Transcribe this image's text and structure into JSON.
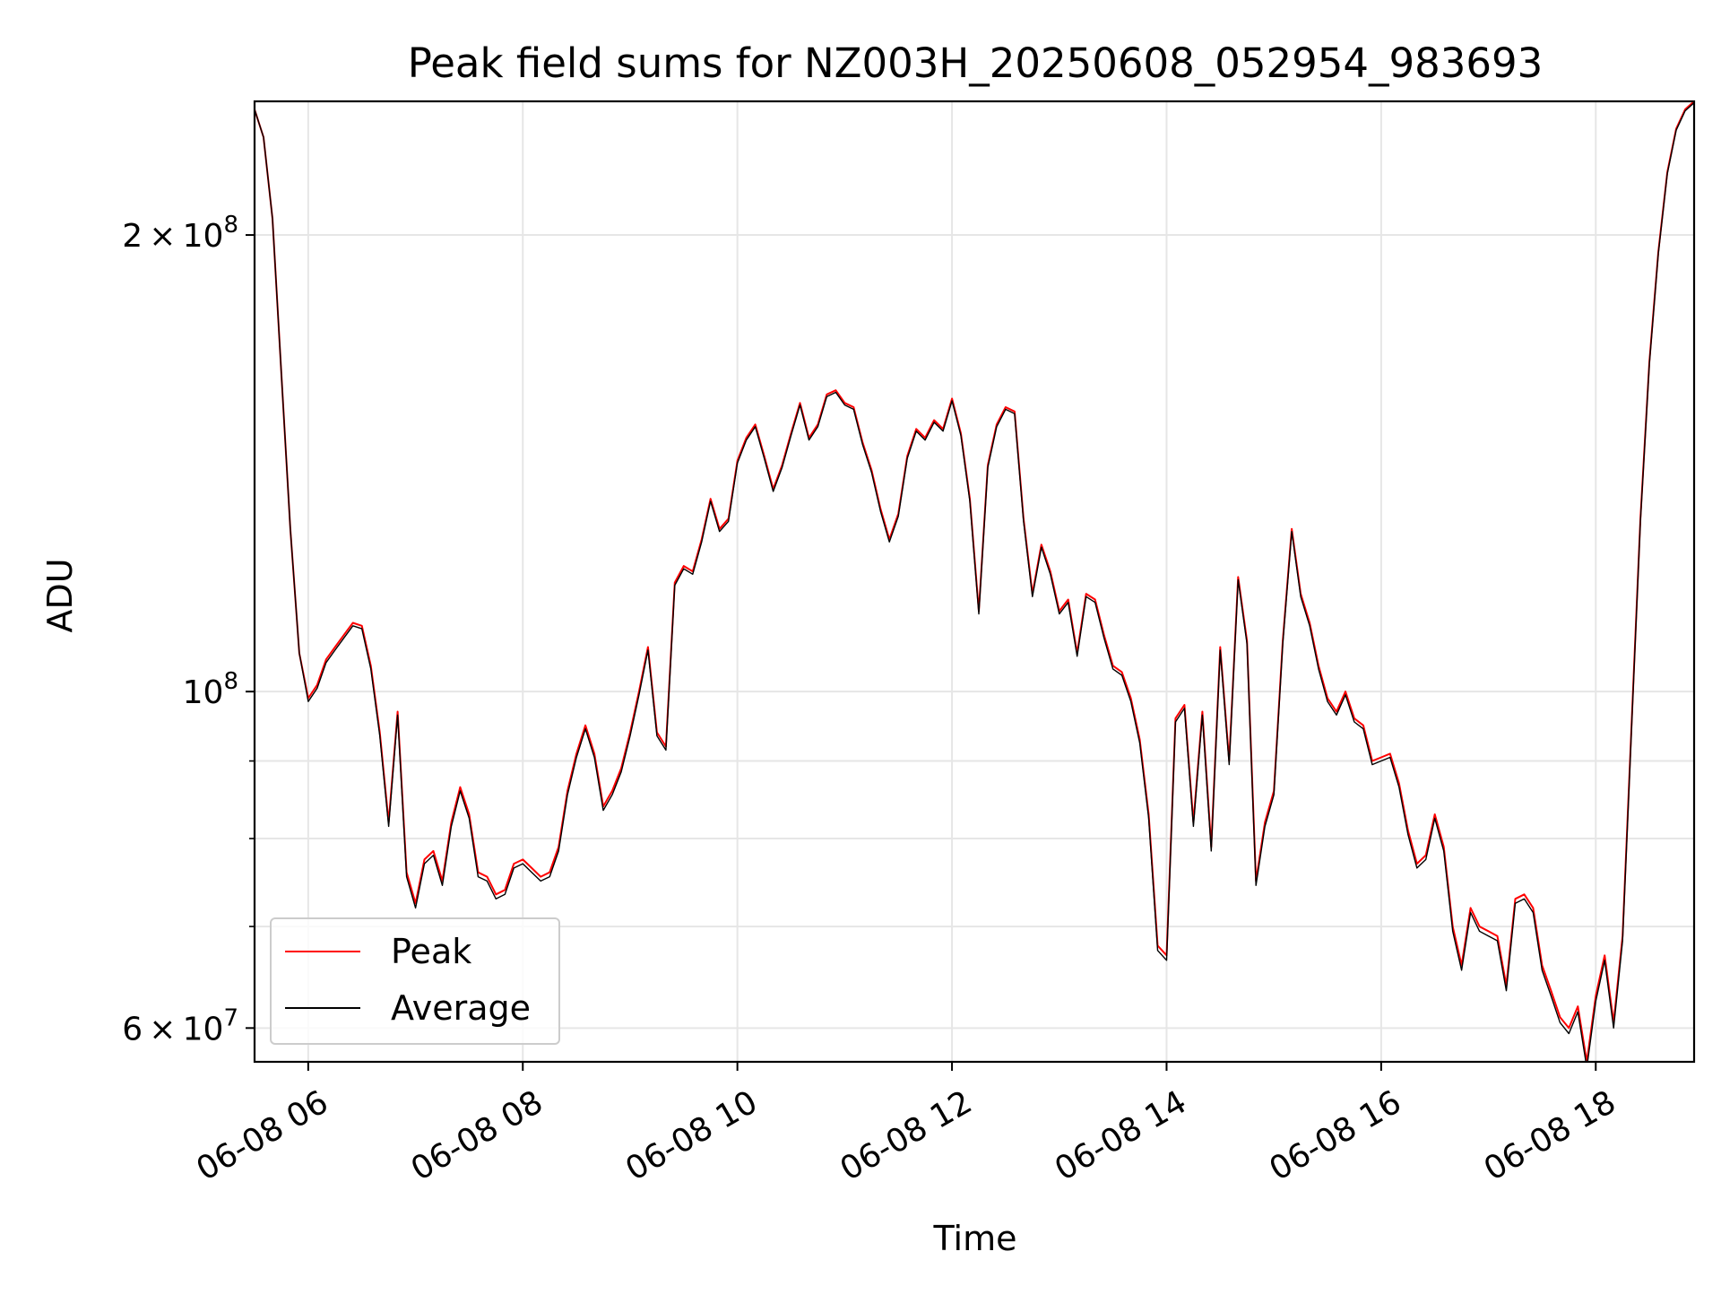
{
  "chart_data": {
    "type": "line",
    "title": "Peak field sums for NZ003H_20250608_052954_983693",
    "xlabel": "Time",
    "ylabel": "ADU",
    "xlim": [
      "06-08 05:30",
      "06-08 18:55"
    ],
    "ylim": [
      57000000,
      245000000
    ],
    "yscale": "log",
    "grid": true,
    "legend_position": "lower-left",
    "x_ticks": [
      "06-08 06",
      "06-08 08",
      "06-08 10",
      "06-08 12",
      "06-08 14",
      "06-08 16",
      "06-08 18"
    ],
    "y_ticks": [
      {
        "value": 60000000,
        "mantissa": "6",
        "base": "10",
        "exp": "7"
      },
      {
        "value": 100000000,
        "mantissa": "",
        "base": "10",
        "exp": "8"
      },
      {
        "value": 200000000,
        "mantissa": "2",
        "base": "10",
        "exp": "8"
      }
    ],
    "y_minor_ticks": [
      70000000,
      80000000,
      90000000
    ],
    "x": [
      "06-08 05:30",
      "06-08 05:35",
      "06-08 05:40",
      "06-08 05:45",
      "06-08 05:50",
      "06-08 05:55",
      "06-08 06:00",
      "06-08 06:05",
      "06-08 06:10",
      "06-08 06:15",
      "06-08 06:20",
      "06-08 06:25",
      "06-08 06:30",
      "06-08 06:35",
      "06-08 06:40",
      "06-08 06:45",
      "06-08 06:50",
      "06-08 06:55",
      "06-08 07:00",
      "06-08 07:05",
      "06-08 07:10",
      "06-08 07:15",
      "06-08 07:20",
      "06-08 07:25",
      "06-08 07:30",
      "06-08 07:35",
      "06-08 07:40",
      "06-08 07:45",
      "06-08 07:50",
      "06-08 07:55",
      "06-08 08:00",
      "06-08 08:05",
      "06-08 08:10",
      "06-08 08:15",
      "06-08 08:20",
      "06-08 08:25",
      "06-08 08:30",
      "06-08 08:35",
      "06-08 08:40",
      "06-08 08:45",
      "06-08 08:50",
      "06-08 08:55",
      "06-08 09:00",
      "06-08 09:05",
      "06-08 09:10",
      "06-08 09:15",
      "06-08 09:20",
      "06-08 09:25",
      "06-08 09:30",
      "06-08 09:35",
      "06-08 09:40",
      "06-08 09:45",
      "06-08 09:50",
      "06-08 09:55",
      "06-08 10:00",
      "06-08 10:05",
      "06-08 10:10",
      "06-08 10:15",
      "06-08 10:20",
      "06-08 10:25",
      "06-08 10:30",
      "06-08 10:35",
      "06-08 10:40",
      "06-08 10:45",
      "06-08 10:50",
      "06-08 10:55",
      "06-08 11:00",
      "06-08 11:05",
      "06-08 11:10",
      "06-08 11:15",
      "06-08 11:20",
      "06-08 11:25",
      "06-08 11:30",
      "06-08 11:35",
      "06-08 11:40",
      "06-08 11:45",
      "06-08 11:50",
      "06-08 11:55",
      "06-08 12:00",
      "06-08 12:05",
      "06-08 12:10",
      "06-08 12:15",
      "06-08 12:20",
      "06-08 12:25",
      "06-08 12:30",
      "06-08 12:35",
      "06-08 12:40",
      "06-08 12:45",
      "06-08 12:50",
      "06-08 12:55",
      "06-08 13:00",
      "06-08 13:05",
      "06-08 13:10",
      "06-08 13:15",
      "06-08 13:20",
      "06-08 13:25",
      "06-08 13:30",
      "06-08 13:35",
      "06-08 13:40",
      "06-08 13:45",
      "06-08 13:50",
      "06-08 13:55",
      "06-08 14:00",
      "06-08 14:05",
      "06-08 14:10",
      "06-08 14:15",
      "06-08 14:20",
      "06-08 14:25",
      "06-08 14:30",
      "06-08 14:35",
      "06-08 14:40",
      "06-08 14:45",
      "06-08 14:50",
      "06-08 14:55",
      "06-08 15:00",
      "06-08 15:05",
      "06-08 15:10",
      "06-08 15:15",
      "06-08 15:20",
      "06-08 15:25",
      "06-08 15:30",
      "06-08 15:35",
      "06-08 15:40",
      "06-08 15:45",
      "06-08 15:50",
      "06-08 15:55",
      "06-08 16:00",
      "06-08 16:05",
      "06-08 16:10",
      "06-08 16:15",
      "06-08 16:20",
      "06-08 16:25",
      "06-08 16:30",
      "06-08 16:35",
      "06-08 16:40",
      "06-08 16:45",
      "06-08 16:50",
      "06-08 16:55",
      "06-08 17:00",
      "06-08 17:05",
      "06-08 17:10",
      "06-08 17:15",
      "06-08 17:20",
      "06-08 17:25",
      "06-08 17:30",
      "06-08 17:35",
      "06-08 17:40",
      "06-08 17:45",
      "06-08 17:50",
      "06-08 17:55",
      "06-08 18:00",
      "06-08 18:05",
      "06-08 18:10",
      "06-08 18:15",
      "06-08 18:20",
      "06-08 18:25",
      "06-08 18:30",
      "06-08 18:35",
      "06-08 18:40",
      "06-08 18:45",
      "06-08 18:50",
      "06-08 18:55"
    ],
    "series": [
      {
        "name": "Peak",
        "color": "#ff0000",
        "values": [
          242000000,
          232000000,
          205000000,
          162000000,
          128000000,
          106000000,
          99000000,
          101000000,
          105000000,
          107000000,
          109000000,
          111000000,
          110500000,
          104000000,
          94000000,
          82000000,
          97000000,
          76000000,
          72500000,
          77500000,
          78500000,
          75000000,
          82000000,
          86500000,
          83000000,
          76000000,
          75500000,
          73500000,
          74000000,
          77000000,
          77500000,
          76500000,
          75500000,
          76000000,
          79000000,
          86000000,
          91000000,
          95000000,
          91000000,
          84000000,
          86000000,
          89000000,
          94000000,
          100000000,
          107000000,
          94000000,
          92000000,
          118000000,
          121000000,
          120000000,
          126000000,
          134000000,
          128000000,
          130000000,
          142000000,
          147000000,
          150000000,
          143000000,
          136000000,
          141000000,
          148000000,
          155000000,
          147000000,
          150000000,
          157000000,
          158000000,
          155000000,
          154000000,
          146000000,
          140000000,
          132000000,
          126000000,
          131000000,
          143000000,
          149000000,
          147000000,
          151000000,
          149000000,
          156000000,
          148000000,
          134000000,
          113000000,
          141000000,
          150000000,
          154000000,
          153000000,
          130000000,
          116000000,
          125000000,
          120000000,
          113000000,
          115000000,
          106000000,
          116000000,
          115000000,
          109000000,
          104000000,
          103000000,
          99000000,
          93000000,
          83000000,
          68000000,
          67000000,
          96000000,
          98000000,
          82000000,
          97000000,
          79000000,
          107000000,
          90000000,
          119000000,
          108000000,
          75000000,
          82000000,
          86000000,
          108000000,
          128000000,
          116000000,
          111000000,
          104000000,
          99000000,
          97000000,
          100000000,
          96000000,
          95000000,
          90000000,
          90500000,
          91000000,
          87000000,
          81000000,
          77000000,
          78000000,
          83000000,
          79000000,
          70000000,
          66000000,
          72000000,
          70000000,
          69500000,
          69000000,
          64000000,
          73000000,
          73500000,
          72000000,
          66000000,
          63500000,
          61000000,
          60000000,
          62000000,
          57000000,
          63000000,
          67000000,
          60500000,
          69000000,
          95000000,
          130000000,
          165000000,
          195000000,
          220000000,
          235000000,
          242000000,
          245000000
        ]
      },
      {
        "name": "Average",
        "color": "#000000",
        "values": [
          242000000,
          232000000,
          205000000,
          162000000,
          128000000,
          106000000,
          98500000,
          100500000,
          104500000,
          106500000,
          108500000,
          110500000,
          110000000,
          103500000,
          93500000,
          81500000,
          96500000,
          75500000,
          72000000,
          77000000,
          78000000,
          74500000,
          81500000,
          86000000,
          82500000,
          75500000,
          75000000,
          73000000,
          73500000,
          76500000,
          77000000,
          76000000,
          75000000,
          75500000,
          78500000,
          85500000,
          90500000,
          94500000,
          90500000,
          83500000,
          85500000,
          88500000,
          93500000,
          99500000,
          106500000,
          93500000,
          91500000,
          117500000,
          120500000,
          119500000,
          125500000,
          133500000,
          127500000,
          129500000,
          141500000,
          146500000,
          149500000,
          142500000,
          135500000,
          140500000,
          147500000,
          154500000,
          146500000,
          149500000,
          156500000,
          157500000,
          154500000,
          153500000,
          145500000,
          139500000,
          131500000,
          125500000,
          130500000,
          142500000,
          148500000,
          146500000,
          150500000,
          148500000,
          155500000,
          147500000,
          133500000,
          112500000,
          140500000,
          149500000,
          153500000,
          152500000,
          129500000,
          115500000,
          124500000,
          119500000,
          112500000,
          114500000,
          105500000,
          115500000,
          114500000,
          108500000,
          103500000,
          102500000,
          98500000,
          92500000,
          82500000,
          67500000,
          66500000,
          95500000,
          97500000,
          81500000,
          96500000,
          78500000,
          106500000,
          89500000,
          118500000,
          107500000,
          74500000,
          81500000,
          85500000,
          107500000,
          127500000,
          115500000,
          110500000,
          103500000,
          98500000,
          96500000,
          99500000,
          95500000,
          94500000,
          89500000,
          90000000,
          90500000,
          86500000,
          80500000,
          76500000,
          77500000,
          82500000,
          78500000,
          69500000,
          65500000,
          71500000,
          69500000,
          69000000,
          68500000,
          63500000,
          72500000,
          73000000,
          71500000,
          65500000,
          63000000,
          60500000,
          59500000,
          61500000,
          56500000,
          62500000,
          66500000,
          60000000,
          68500000,
          94500000,
          129500000,
          164500000,
          194500000,
          219500000,
          234500000,
          241500000,
          244500000
        ]
      }
    ]
  }
}
